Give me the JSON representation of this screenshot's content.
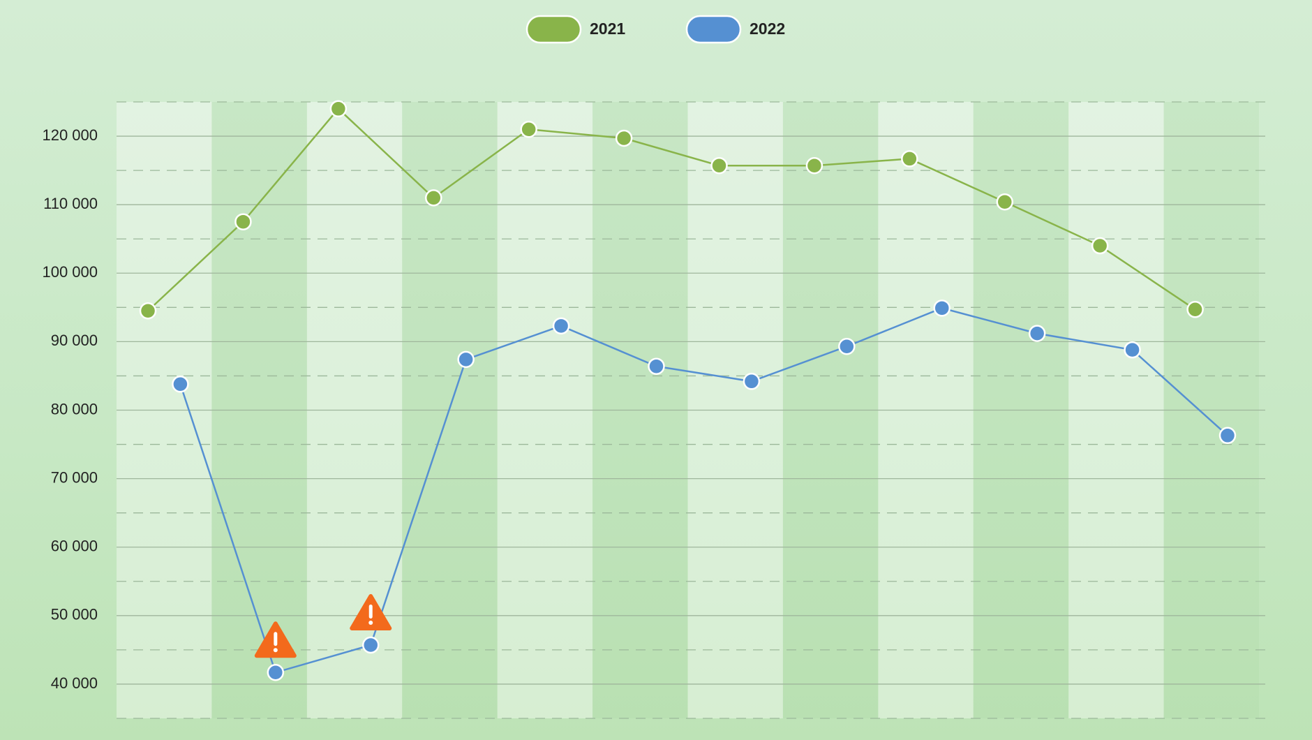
{
  "chart_data": {
    "type": "line",
    "series": [
      {
        "name": "2021",
        "color": "#89b44a",
        "values": [
          94500,
          107500,
          124000,
          111000,
          121000,
          119700,
          115700,
          115700,
          116700,
          110400,
          104000,
          94700
        ]
      },
      {
        "name": "2022",
        "color": "#5590d2",
        "values": [
          83800,
          41700,
          45700,
          87400,
          92300,
          86400,
          84200,
          89300,
          94900,
          91200,
          88800,
          76300
        ],
        "alerts": [
          1,
          2
        ]
      }
    ],
    "ylim": [
      35000,
      125000
    ],
    "yticks": [
      {
        "value": 40000,
        "label": "40 000"
      },
      {
        "value": 50000,
        "label": "50 000"
      },
      {
        "value": 60000,
        "label": "60 000"
      },
      {
        "value": 70000,
        "label": "70 000"
      },
      {
        "value": 80000,
        "label": "80 000"
      },
      {
        "value": 90000,
        "label": "90 000"
      },
      {
        "value": 100000,
        "label": "100 000"
      },
      {
        "value": 110000,
        "label": "110 000"
      },
      {
        "value": 120000,
        "label": "120 000"
      }
    ],
    "minor_yticks": [
      35000,
      45000,
      55000,
      65000,
      75000,
      85000,
      95000,
      105000,
      115000,
      125000
    ],
    "grid": true,
    "legend": "top"
  }
}
